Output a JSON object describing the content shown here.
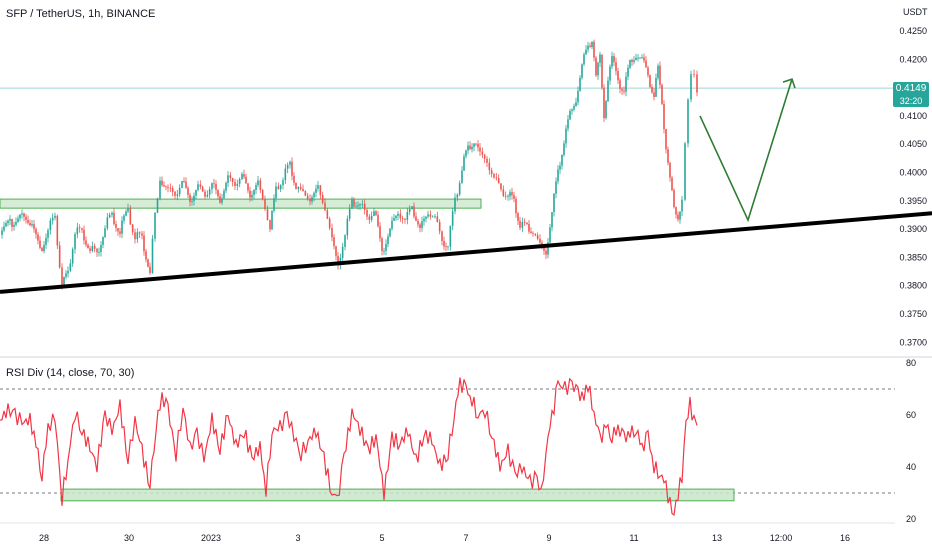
{
  "header": {
    "symbol_title": "SFP / TetherUS, 1h, BINANCE"
  },
  "price_axis": {
    "unit": "USDT",
    "last_price_label": "0.4149",
    "countdown_label": "32:20",
    "last_price_color": "#26a69a"
  },
  "rsi": {
    "title": "RSI Div (14, close, 70, 30)"
  },
  "colors": {
    "candle_up": "#26a69a",
    "candle_down": "#ef5350",
    "rsi_line": "#f23645",
    "zone_fill": "#c8e6c9",
    "zone_stroke": "#4caf50",
    "arrow": "#2e7d32",
    "trendline": "#000000"
  },
  "chart_data": [
    {
      "type": "candlestick",
      "title": "SFP / TetherUS, 1h, BINANCE",
      "xlabel": "",
      "ylabel": "USDT",
      "ylim": [
        0.368,
        0.429
      ],
      "y_ticks": [
        0.37,
        0.375,
        0.38,
        0.385,
        0.39,
        0.395,
        0.4,
        0.405,
        0.41,
        0.415,
        0.42,
        0.425
      ],
      "y_tick_labels": [
        "0.3700",
        "0.3750",
        "0.3800",
        "0.3850",
        "0.3900",
        "0.3950",
        "0.4000",
        "0.4050",
        "0.4100",
        "0.4150",
        "0.4200",
        "0.4250"
      ],
      "x_tick_labels": [
        "28",
        "30",
        "2023",
        "3",
        "5",
        "7",
        "9",
        "11",
        "13",
        "12:00",
        "16"
      ],
      "last_price": 0.4149,
      "grid": false,
      "close_path": [
        [
          0,
          0.389
        ],
        [
          10,
          0.391
        ],
        [
          20,
          0.3925
        ],
        [
          30,
          0.3915
        ],
        [
          40,
          0.386
        ],
        [
          48,
          0.39
        ],
        [
          55,
          0.392
        ],
        [
          62,
          0.38
        ],
        [
          68,
          0.382
        ],
        [
          75,
          0.39
        ],
        [
          82,
          0.389
        ],
        [
          90,
          0.387
        ],
        [
          97,
          0.385
        ],
        [
          105,
          0.391
        ],
        [
          112,
          0.392
        ],
        [
          120,
          0.39
        ],
        [
          128,
          0.393
        ],
        [
          135,
          0.389
        ],
        [
          142,
          0.388
        ],
        [
          150,
          0.383
        ],
        [
          155,
          0.392
        ],
        [
          160,
          0.399
        ],
        [
          168,
          0.397
        ],
        [
          175,
          0.396
        ],
        [
          182,
          0.3985
        ],
        [
          190,
          0.395
        ],
        [
          198,
          0.3975
        ],
        [
          205,
          0.396
        ],
        [
          212,
          0.398
        ],
        [
          220,
          0.395
        ],
        [
          228,
          0.399
        ],
        [
          235,
          0.398
        ],
        [
          242,
          0.3995
        ],
        [
          250,
          0.396
        ],
        [
          258,
          0.398
        ],
        [
          265,
          0.394
        ],
        [
          270,
          0.39
        ],
        [
          276,
          0.397
        ],
        [
          283,
          0.3995
        ],
        [
          290,
          0.401
        ],
        [
          296,
          0.398
        ],
        [
          303,
          0.396
        ],
        [
          310,
          0.3955
        ],
        [
          318,
          0.397
        ],
        [
          325,
          0.394
        ],
        [
          332,
          0.388
        ],
        [
          338,
          0.384
        ],
        [
          345,
          0.389
        ],
        [
          352,
          0.395
        ],
        [
          360,
          0.3945
        ],
        [
          367,
          0.392
        ],
        [
          374,
          0.3935
        ],
        [
          382,
          0.386
        ],
        [
          390,
          0.39
        ],
        [
          398,
          0.393
        ],
        [
          405,
          0.3915
        ],
        [
          412,
          0.394
        ],
        [
          420,
          0.39
        ],
        [
          428,
          0.393
        ],
        [
          435,
          0.392
        ],
        [
          442,
          0.388
        ],
        [
          448,
          0.387
        ],
        [
          455,
          0.395
        ],
        [
          462,
          0.401
        ],
        [
          468,
          0.404
        ],
        [
          474,
          0.406
        ],
        [
          480,
          0.403
        ],
        [
          487,
          0.402
        ],
        [
          494,
          0.399
        ],
        [
          501,
          0.397
        ],
        [
          508,
          0.396
        ],
        [
          514,
          0.395
        ],
        [
          520,
          0.391
        ],
        [
          527,
          0.39
        ],
        [
          533,
          0.39
        ],
        [
          540,
          0.387
        ],
        [
          546,
          0.386
        ],
        [
          552,
          0.393
        ],
        [
          558,
          0.4
        ],
        [
          564,
          0.406
        ],
        [
          570,
          0.41
        ],
        [
          576,
          0.413
        ],
        [
          582,
          0.419
        ],
        [
          588,
          0.422
        ],
        [
          592,
          0.424
        ],
        [
          596,
          0.417
        ],
        [
          600,
          0.42
        ],
        [
          604,
          0.41
        ],
        [
          608,
          0.417
        ],
        [
          612,
          0.42
        ],
        [
          618,
          0.416
        ],
        [
          624,
          0.415
        ],
        [
          630,
          0.419
        ],
        [
          636,
          0.421
        ],
        [
          642,
          0.42
        ],
        [
          648,
          0.417
        ],
        [
          654,
          0.414
        ],
        [
          658,
          0.418
        ],
        [
          662,
          0.412
        ],
        [
          666,
          0.405
        ],
        [
          670,
          0.399
        ],
        [
          674,
          0.393
        ],
        [
          678,
          0.392
        ],
        [
          682,
          0.396
        ],
        [
          685,
          0.405
        ],
        [
          688,
          0.412
        ],
        [
          691,
          0.417
        ],
        [
          694,
          0.418
        ],
        [
          697,
          0.4149
        ]
      ],
      "zones": [
        {
          "name": "resistance-zone",
          "y": [
            0.3937,
            0.3953
          ],
          "x": [
            0,
            481
          ]
        }
      ],
      "trendline": {
        "points": [
          [
            0,
            0.3789
          ],
          [
            932,
            0.3928
          ]
        ]
      },
      "projection_arrow": {
        "points": [
          [
            700,
            0.41
          ],
          [
            748,
            0.3916
          ],
          [
            792,
            0.4165
          ]
        ]
      }
    },
    {
      "type": "line",
      "title": "RSI Div (14, close, 70, 30)",
      "ylim": [
        16,
        80
      ],
      "y_ticks": [
        20,
        40,
        60,
        80
      ],
      "y_tick_labels": [
        "20",
        "40",
        "60",
        "80"
      ],
      "levels": [
        70,
        30
      ],
      "grid": false,
      "series": [
        {
          "values": [
            [
              0,
              58
            ],
            [
              8,
              62
            ],
            [
              15,
              60
            ],
            [
              22,
              57
            ],
            [
              30,
              58
            ],
            [
              36,
              49
            ],
            [
              42,
              37
            ],
            [
              48,
              55
            ],
            [
              55,
              59
            ],
            [
              62,
              28
            ],
            [
              68,
              43
            ],
            [
              75,
              61
            ],
            [
              82,
              54
            ],
            [
              90,
              47
            ],
            [
              97,
              41
            ],
            [
              105,
              60
            ],
            [
              112,
              54
            ],
            [
              120,
              63
            ],
            [
              128,
              43
            ],
            [
              135,
              58
            ],
            [
              142,
              46
            ],
            [
              150,
              33
            ],
            [
              156,
              56
            ],
            [
              162,
              67
            ],
            [
              168,
              62
            ],
            [
              176,
              45
            ],
            [
              183,
              63
            ],
            [
              190,
              47
            ],
            [
              197,
              53
            ],
            [
              204,
              43
            ],
            [
              212,
              58
            ],
            [
              220,
              47
            ],
            [
              228,
              60
            ],
            [
              236,
              48
            ],
            [
              244,
              54
            ],
            [
              252,
              43
            ],
            [
              260,
              48
            ],
            [
              266,
              31
            ],
            [
              272,
              54
            ],
            [
              280,
              55
            ],
            [
              287,
              60
            ],
            [
              294,
              52
            ],
            [
              301,
              45
            ],
            [
              308,
              50
            ],
            [
              316,
              54
            ],
            [
              324,
              43
            ],
            [
              332,
              30
            ],
            [
              337,
              26
            ],
            [
              344,
              44
            ],
            [
              352,
              61
            ],
            [
              360,
              55
            ],
            [
              368,
              46
            ],
            [
              376,
              52
            ],
            [
              384,
              30
            ],
            [
              392,
              51
            ],
            [
              400,
              49
            ],
            [
              408,
              54
            ],
            [
              416,
              42
            ],
            [
              424,
              53
            ],
            [
              432,
              50
            ],
            [
              440,
              40
            ],
            [
              448,
              45
            ],
            [
              454,
              60
            ],
            [
              460,
              72
            ],
            [
              466,
              70
            ],
            [
              472,
              66
            ],
            [
              478,
              60
            ],
            [
              485,
              62
            ],
            [
              492,
              52
            ],
            [
              500,
              40
            ],
            [
              508,
              46
            ],
            [
              515,
              37
            ],
            [
              522,
              40
            ],
            [
              530,
              34
            ],
            [
              537,
              36
            ],
            [
              541,
              29
            ],
            [
              546,
              47
            ],
            [
              552,
              59
            ],
            [
              558,
              72
            ],
            [
              565,
              70
            ],
            [
              572,
              72
            ],
            [
              578,
              68
            ],
            [
              584,
              67
            ],
            [
              588,
              72
            ],
            [
              594,
              61
            ],
            [
              600,
              50
            ],
            [
              606,
              56
            ],
            [
              612,
              52
            ],
            [
              618,
              55
            ],
            [
              624,
              51
            ],
            [
              630,
              53
            ],
            [
              636,
              55
            ],
            [
              642,
              47
            ],
            [
              648,
              52
            ],
            [
              654,
              40
            ],
            [
              660,
              38
            ],
            [
              666,
              32
            ],
            [
              670,
              26
            ],
            [
              674,
              22
            ],
            [
              678,
              30
            ],
            [
              682,
              36
            ],
            [
              686,
              57
            ],
            [
              690,
              64
            ],
            [
              694,
              58
            ],
            [
              697,
              56
            ]
          ]
        }
      ],
      "zones": [
        {
          "name": "oversold-zone",
          "y": [
            27,
            31.5
          ],
          "x": [
            61,
            734
          ]
        }
      ]
    }
  ]
}
